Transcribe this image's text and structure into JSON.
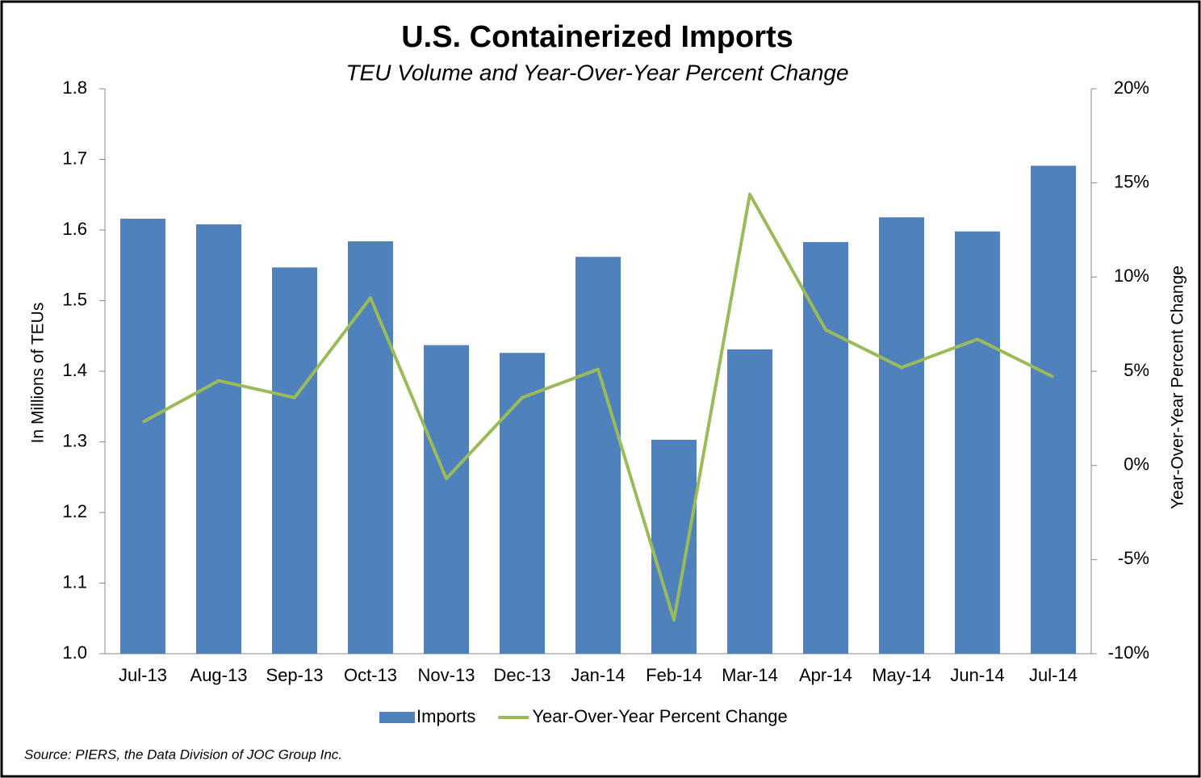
{
  "chart_data": {
    "type": "bar_line",
    "title": "U.S. Containerized Imports",
    "subtitle": "TEU Volume and Year-Over-Year Percent Change",
    "y_label": "In Millions of TEUs",
    "y2_label": "Year-Over-Year  Percent Change",
    "source": "Source: PIERS, the Data Division of JOC Group Inc.",
    "categories": [
      "Jul-13",
      "Aug-13",
      "Sep-13",
      "Oct-13",
      "Nov-13",
      "Dec-13",
      "Jan-14",
      "Feb-14",
      "Mar-14",
      "Apr-14",
      "May-14",
      "Jun-14",
      "Jul-14"
    ],
    "series": [
      {
        "name": "Imports",
        "type": "bar",
        "color": "#4f81bd",
        "values": [
          1.616,
          1.608,
          1.547,
          1.584,
          1.437,
          1.426,
          1.562,
          1.303,
          1.431,
          1.583,
          1.618,
          1.598,
          1.691
        ]
      },
      {
        "name": "Year-Over-Year Percent Change",
        "type": "line",
        "axis": "y2",
        "color": "#9bbb59",
        "values": [
          2.3,
          4.5,
          3.6,
          8.9,
          -0.7,
          3.6,
          5.1,
          -8.2,
          14.4,
          7.2,
          5.2,
          6.7,
          4.7
        ]
      }
    ],
    "ylim": [
      1.0,
      1.8
    ],
    "yticks": [
      {
        "value": 1.0,
        "label": "1.0"
      },
      1.1,
      1.2,
      1.3,
      1.4,
      1.5,
      1.6,
      1.7,
      1.8
    ],
    "y2lim": [
      -10,
      20
    ],
    "y2ticks": [
      {
        "value": -10,
        "label": "-10%"
      },
      {
        "value": -5,
        "label": "-5%"
      },
      {
        "value": 0,
        "label": "0%"
      },
      {
        "value": 5,
        "label": "5%"
      },
      {
        "value": 10,
        "label": "10%"
      },
      {
        "value": 15,
        "label": "15%"
      },
      {
        "value": 20,
        "label": "20%"
      }
    ],
    "legend": "bottom"
  }
}
